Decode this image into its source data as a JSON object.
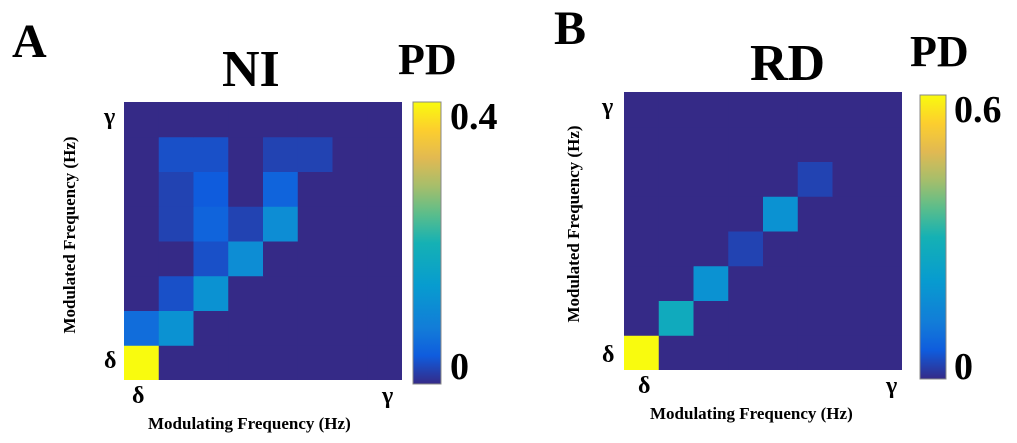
{
  "chart_data": [
    {
      "type": "heatmap",
      "panel_label": "A",
      "title": "NI",
      "xlabel": "Modulating Frequency (Hz)",
      "ylabel": "Modulated Frequency (Hz)",
      "x_tick_labels": [
        "δ",
        "γ"
      ],
      "y_tick_labels": [
        "δ",
        "γ"
      ],
      "colorbar": {
        "label": "PD",
        "min": 0,
        "max": 0.4,
        "min_label": "0",
        "max_label": "0.4",
        "colormap": "parula"
      },
      "grid_size": 8,
      "matrix_rows_bottom_to_top": [
        [
          0.4,
          0.0,
          0.0,
          0.0,
          0.0,
          0.0,
          0.0,
          0.0
        ],
        [
          0.06,
          0.12,
          0.0,
          0.0,
          0.0,
          0.0,
          0.0,
          0.0
        ],
        [
          0.0,
          0.03,
          0.12,
          0.0,
          0.0,
          0.0,
          0.0,
          0.0
        ],
        [
          0.0,
          0.0,
          0.03,
          0.11,
          0.0,
          0.0,
          0.0,
          0.0
        ],
        [
          0.0,
          0.02,
          0.05,
          0.02,
          0.11,
          0.0,
          0.0,
          0.0
        ],
        [
          0.0,
          0.02,
          0.04,
          0.0,
          0.05,
          0.0,
          0.0,
          0.0
        ],
        [
          0.0,
          0.03,
          0.03,
          0.0,
          0.02,
          0.02,
          0.0,
          0.0
        ],
        [
          0.0,
          0.0,
          0.0,
          0.0,
          0.0,
          0.0,
          0.0,
          0.0
        ]
      ]
    },
    {
      "type": "heatmap",
      "panel_label": "B",
      "title": "RD",
      "xlabel": "Modulating Frequency (Hz)",
      "ylabel": "Modulated Frequency (Hz)",
      "x_tick_labels": [
        "δ",
        "γ"
      ],
      "y_tick_labels": [
        "δ",
        "γ"
      ],
      "colorbar": {
        "label": "PD",
        "min": 0,
        "max": 0.6,
        "min_label": "0",
        "max_label": "0.6",
        "colormap": "parula"
      },
      "grid_size": 8,
      "matrix_rows_bottom_to_top": [
        [
          0.6,
          0.0,
          0.0,
          0.0,
          0.0,
          0.0,
          0.0,
          0.0
        ],
        [
          0.0,
          0.27,
          0.0,
          0.0,
          0.0,
          0.0,
          0.0,
          0.0
        ],
        [
          0.0,
          0.0,
          0.18,
          0.0,
          0.0,
          0.0,
          0.0,
          0.0
        ],
        [
          0.0,
          0.0,
          0.0,
          0.03,
          0.0,
          0.0,
          0.0,
          0.0
        ],
        [
          0.0,
          0.0,
          0.0,
          0.0,
          0.18,
          0.0,
          0.0,
          0.0
        ],
        [
          0.0,
          0.0,
          0.0,
          0.0,
          0.0,
          0.03,
          0.0,
          0.0
        ],
        [
          0.0,
          0.0,
          0.0,
          0.0,
          0.0,
          0.0,
          0.0,
          0.0
        ],
        [
          0.0,
          0.0,
          0.0,
          0.0,
          0.0,
          0.0,
          0.0,
          0.0
        ]
      ]
    }
  ]
}
